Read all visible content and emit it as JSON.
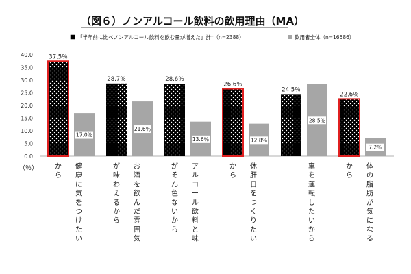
{
  "chart_data": {
    "type": "bar",
    "title": "（図６）ノンアルコール飲料の飲用理由（MA）",
    "ylabel_unit": "（％）",
    "ylim": [
      0,
      40
    ],
    "yticks": [
      "0.0",
      "5.0",
      "10.0",
      "15.0",
      "20.0",
      "25.0",
      "30.0",
      "35.0",
      "40.0"
    ],
    "ytick_values": [
      0,
      5,
      10,
      15,
      20,
      25,
      30,
      35,
      40
    ],
    "grid": false,
    "legend_position": "top",
    "categories": [
      "健康に気をつけたいから",
      "お酒を飲んだ雰囲気が味わえるから",
      "アルコール飲料と味がそん色ないから",
      "休肝日をつくりたいから",
      "車を運転したいから",
      "体の脂肪が気になるから"
    ],
    "label_lines": [
      [
        "から",
        "健康に気をつけたい"
      ],
      [
        "が味わえるから",
        "お酒を飲んだ雰囲気"
      ],
      [
        "がそん色ないから",
        "アルコール飲料と味"
      ],
      [
        "から",
        "休肝日をつくりたい"
      ],
      [
        "",
        "車を運転したいから"
      ],
      [
        "から",
        "体の脂肪が気になる"
      ]
    ],
    "series": [
      {
        "name": "「半年前に比べノンアルコール飲料を飲む量が増えた」計†（n=2388）",
        "values": [
          37.5,
          28.7,
          28.6,
          26.6,
          24.5,
          22.6
        ],
        "labels": [
          "37.5％",
          "28.7％",
          "28.6％",
          "26.6％",
          "24.5％",
          "22.6％"
        ],
        "color": "#000000",
        "highlight_color": "#e02020",
        "highlighted": [
          true,
          false,
          false,
          true,
          false,
          true
        ]
      },
      {
        "name": "飲用者全体（n=16586）",
        "values": [
          17.0,
          21.6,
          13.6,
          12.8,
          28.5,
          7.2
        ],
        "labels": [
          "17.0％",
          "21.6％",
          "13.6％",
          "12.8％",
          "28.5％",
          "7.2％"
        ],
        "color": "#a6a6a6"
      }
    ]
  }
}
